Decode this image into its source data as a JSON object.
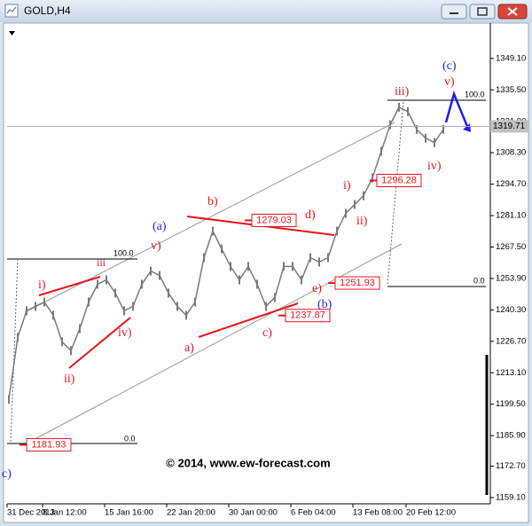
{
  "window": {
    "title": "GOLD,H4"
  },
  "chart_data": {
    "type": "line",
    "categories": [
      "31 Dec 2013",
      null,
      null,
      null,
      "8 Jan 12:00",
      null,
      null,
      null,
      null,
      null,
      null,
      "15 Jan 16:00",
      null,
      null,
      null,
      null,
      null,
      null,
      "22 Jan 20:00",
      null,
      null,
      null,
      null,
      null,
      null,
      "30 Jan 00:00",
      null,
      null,
      null,
      null,
      null,
      null,
      "6 Feb 04:00",
      null,
      null,
      null,
      null,
      null,
      null,
      "13 Feb 08:00",
      null,
      null,
      null,
      null,
      null,
      "20 Feb 12:00",
      null,
      null,
      null,
      null
    ],
    "values": [
      1201.6,
      1228.4,
      1239.9,
      1241.8,
      1243.7,
      1238.0,
      1226.5,
      1222.7,
      1232.2,
      1243.7,
      1251.4,
      1253.3,
      1247.6,
      1239.9,
      1241.8,
      1251.4,
      1257.1,
      1255.2,
      1247.6,
      1241.8,
      1238.0,
      1243.7,
      1262.9,
      1274.4,
      1266.7,
      1259.1,
      1253.3,
      1259.1,
      1251.4,
      1241.8,
      1245.7,
      1259.1,
      1259.1,
      1253.3,
      1262.9,
      1261.0,
      1262.9,
      1274.4,
      1282.1,
      1285.9,
      1289.7,
      1297.4,
      1308.9,
      1320.4,
      1328.0,
      1326.1,
      1318.4,
      1314.6,
      1312.7,
      1318.4
    ],
    "color": "#7a7a7a",
    "ylim": [
      1156.4,
      1364.4
    ],
    "yticks": [
      {
        "value": 1349.1,
        "label": "1349.10"
      },
      {
        "value": 1335.5,
        "label": "1335.50"
      },
      {
        "value": 1321.9,
        "label": "1321.90"
      },
      {
        "value": 1308.3,
        "label": "1308.30"
      },
      {
        "value": 1294.7,
        "label": "1294.70"
      },
      {
        "value": 1281.1,
        "label": "1281.10"
      },
      {
        "value": 1267.5,
        "label": "1267.50"
      },
      {
        "value": 1253.9,
        "label": "1253.90"
      },
      {
        "value": 1240.3,
        "label": "1240.30"
      },
      {
        "value": 1226.7,
        "label": "1226.70"
      },
      {
        "value": 1213.1,
        "label": "1213.10"
      },
      {
        "value": 1199.5,
        "label": "1199.50"
      },
      {
        "value": 1185.9,
        "label": "1185.90"
      },
      {
        "value": 1172.7,
        "label": "1172.70"
      },
      {
        "value": 1159.1,
        "label": "1159.10"
      }
    ],
    "current_price": 1319.71,
    "price_tags": [
      1296.28,
      1279.03,
      1251.93,
      1237.87,
      1181.93
    ],
    "annotations": [
      "(c)",
      "v)",
      "iii)",
      "100.0",
      "iv)",
      "i)",
      "ii)",
      "b)",
      "d)",
      "(a)",
      "v)",
      "iii",
      "100.0",
      "i)",
      "iv)",
      "ii)",
      "a)",
      "c)",
      "e)",
      "(b)",
      "0.0",
      "0.0",
      "c)"
    ],
    "watermark": "© 2014, www.ew-forecast.com"
  }
}
